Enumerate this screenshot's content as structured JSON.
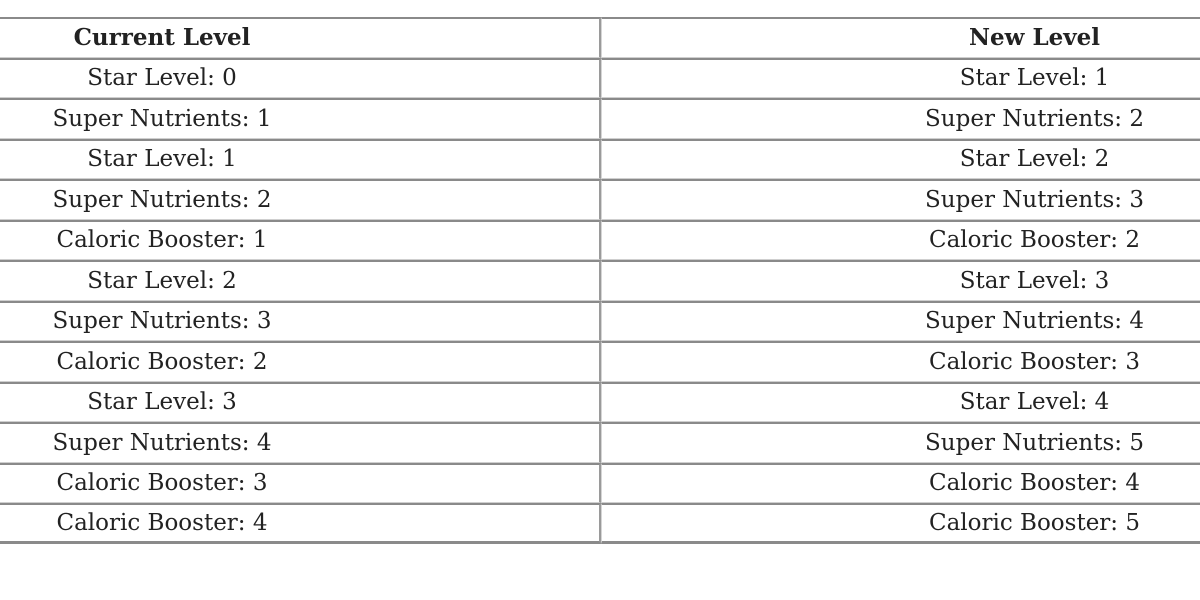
{
  "table": {
    "headers": [
      "Current Level",
      "New Level"
    ],
    "rows": [
      [
        "Star Level: 0",
        "Star Level: 1"
      ],
      [
        "Super Nutrients: 1",
        "Super Nutrients: 2"
      ],
      [
        "Star Level: 1",
        "Star Level: 2"
      ],
      [
        "Super Nutrients: 2",
        "Super Nutrients: 3"
      ],
      [
        "Caloric Booster: 1",
        "Caloric Booster: 2"
      ],
      [
        "Star Level: 2",
        "Star Level: 3"
      ],
      [
        "Super Nutrients: 3",
        "Super Nutrients: 4"
      ],
      [
        "Caloric Booster: 2",
        "Caloric Booster: 3"
      ],
      [
        "Star Level: 3",
        "Star Level: 4"
      ],
      [
        "Super Nutrients: 4",
        "Super Nutrients: 5"
      ],
      [
        "Caloric Booster: 3",
        "Caloric Booster: 4"
      ],
      [
        "Caloric Booster: 4",
        "Caloric Booster: 5"
      ]
    ]
  }
}
